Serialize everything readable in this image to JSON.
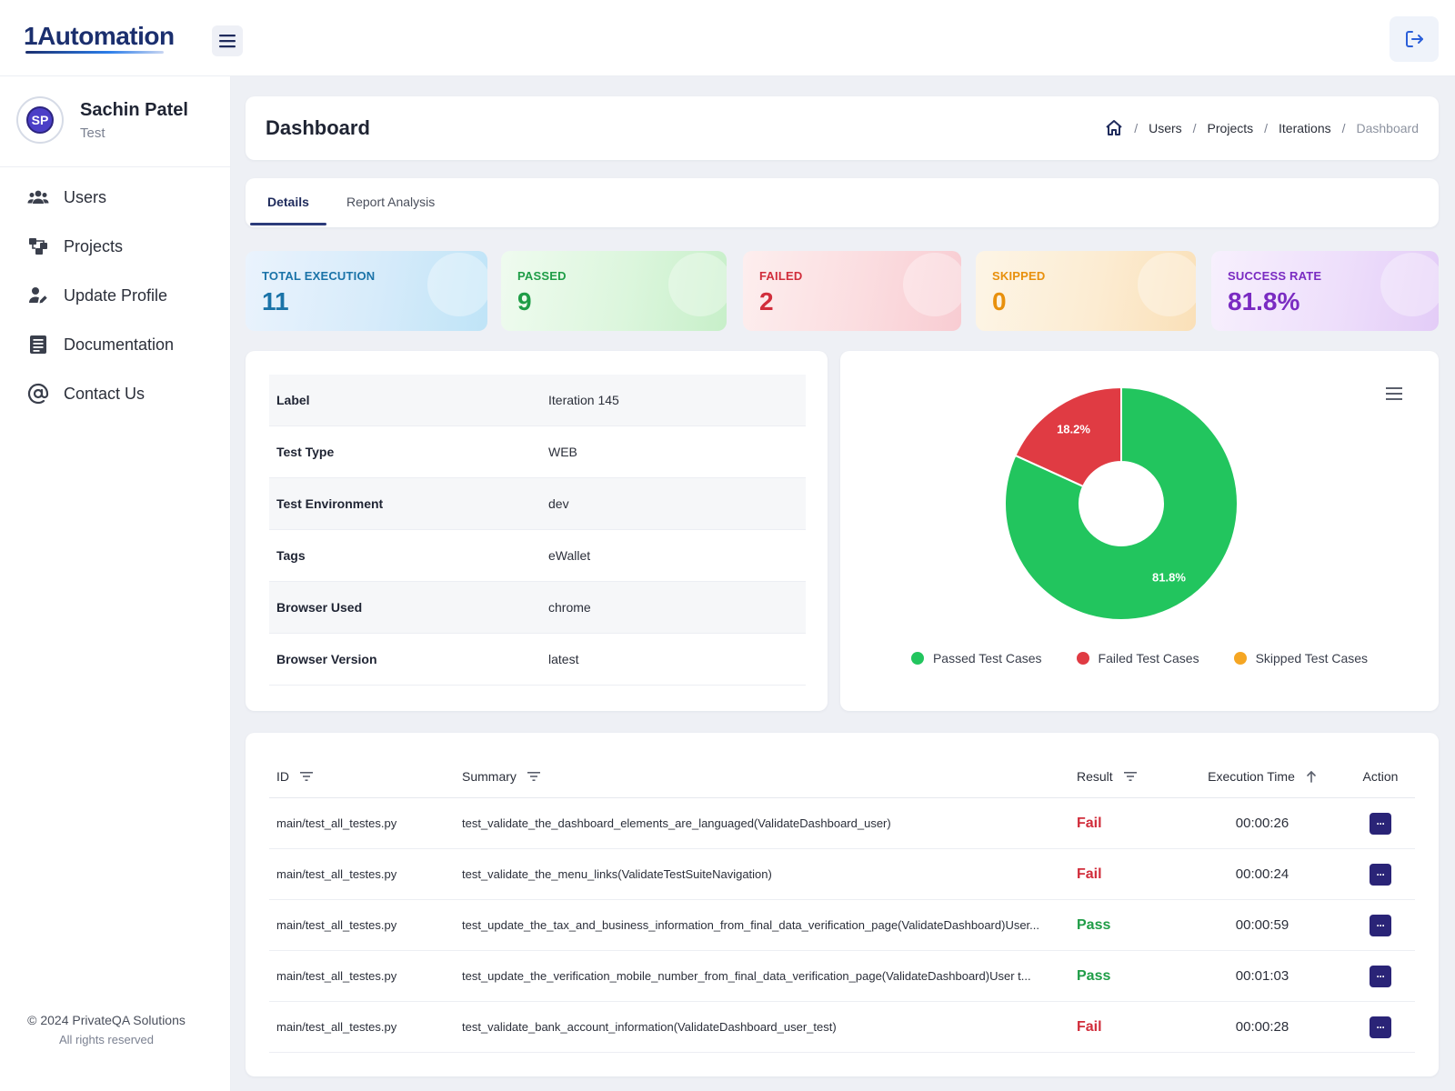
{
  "app": {
    "logo_text": "1Automation"
  },
  "user": {
    "initials": "SP",
    "name": "Sachin Patel",
    "role": "Test"
  },
  "sidebar": {
    "items": [
      {
        "label": "Users",
        "icon": "users-icon"
      },
      {
        "label": "Projects",
        "icon": "projects-icon"
      },
      {
        "label": "Update Profile",
        "icon": "user-edit-icon"
      },
      {
        "label": "Documentation",
        "icon": "document-icon"
      },
      {
        "label": "Contact Us",
        "icon": "at-sign-icon"
      }
    ],
    "footer_copy": "© 2024 PrivateQA Solutions",
    "footer_rights": "All rights reserved"
  },
  "header": {
    "title": "Dashboard",
    "breadcrumb": [
      "Users",
      "Projects",
      "Iterations",
      "Dashboard"
    ]
  },
  "tabs": [
    {
      "label": "Details",
      "active": true
    },
    {
      "label": "Report Analysis",
      "active": false
    }
  ],
  "stats": [
    {
      "label": "TOTAL EXECUTION",
      "value": "11",
      "color": "#1a73a8"
    },
    {
      "label": "PASSED",
      "value": "9",
      "color": "#1f9d47"
    },
    {
      "label": "FAILED",
      "value": "2",
      "color": "#d12d3b"
    },
    {
      "label": "SKIPPED",
      "value": "0",
      "color": "#e8900c"
    },
    {
      "label": "SUCCESS RATE",
      "value": "81.8%",
      "color": "#7a2bc2"
    }
  ],
  "details": [
    {
      "key": "Label",
      "value": "Iteration 145"
    },
    {
      "key": "Test Type",
      "value": "WEB"
    },
    {
      "key": "Test Environment",
      "value": "dev"
    },
    {
      "key": "Tags",
      "value": "eWallet"
    },
    {
      "key": "Browser Used",
      "value": "chrome"
    },
    {
      "key": "Browser Version",
      "value": "latest"
    }
  ],
  "chart_data": {
    "type": "pie",
    "donut": true,
    "categories": [
      "Passed Test Cases",
      "Failed Test Cases",
      "Skipped Test Cases"
    ],
    "values": [
      81.8,
      18.2,
      0
    ],
    "labels": [
      "81.8%",
      "18.2%",
      ""
    ],
    "colors": [
      "#22c55e",
      "#e03b43",
      "#f5a623"
    ],
    "legend": "bottom"
  },
  "results_table": {
    "columns": [
      "ID",
      "Summary",
      "Result",
      "Execution Time",
      "Action"
    ],
    "rows": [
      {
        "id": "main/test_all_testes.py",
        "summary": "test_validate_the_dashboard_elements_are_languaged(ValidateDashboard_user)",
        "result": "Fail",
        "time": "00:00:26"
      },
      {
        "id": "main/test_all_testes.py",
        "summary": "test_validate_the_menu_links(ValidateTestSuiteNavigation)",
        "result": "Fail",
        "time": "00:00:24"
      },
      {
        "id": "main/test_all_testes.py",
        "summary": "test_update_the_tax_and_business_information_from_final_data_verification_page(ValidateDashboard)User...",
        "result": "Pass",
        "time": "00:00:59"
      },
      {
        "id": "main/test_all_testes.py",
        "summary": "test_update_the_verification_mobile_number_from_final_data_verification_page(ValidateDashboard)User t...",
        "result": "Pass",
        "time": "00:01:03"
      },
      {
        "id": "main/test_all_testes.py",
        "summary": "test_validate_bank_account_information(ValidateDashboard_user_test)",
        "result": "Fail",
        "time": "00:00:28"
      }
    ],
    "action_label": "···"
  }
}
